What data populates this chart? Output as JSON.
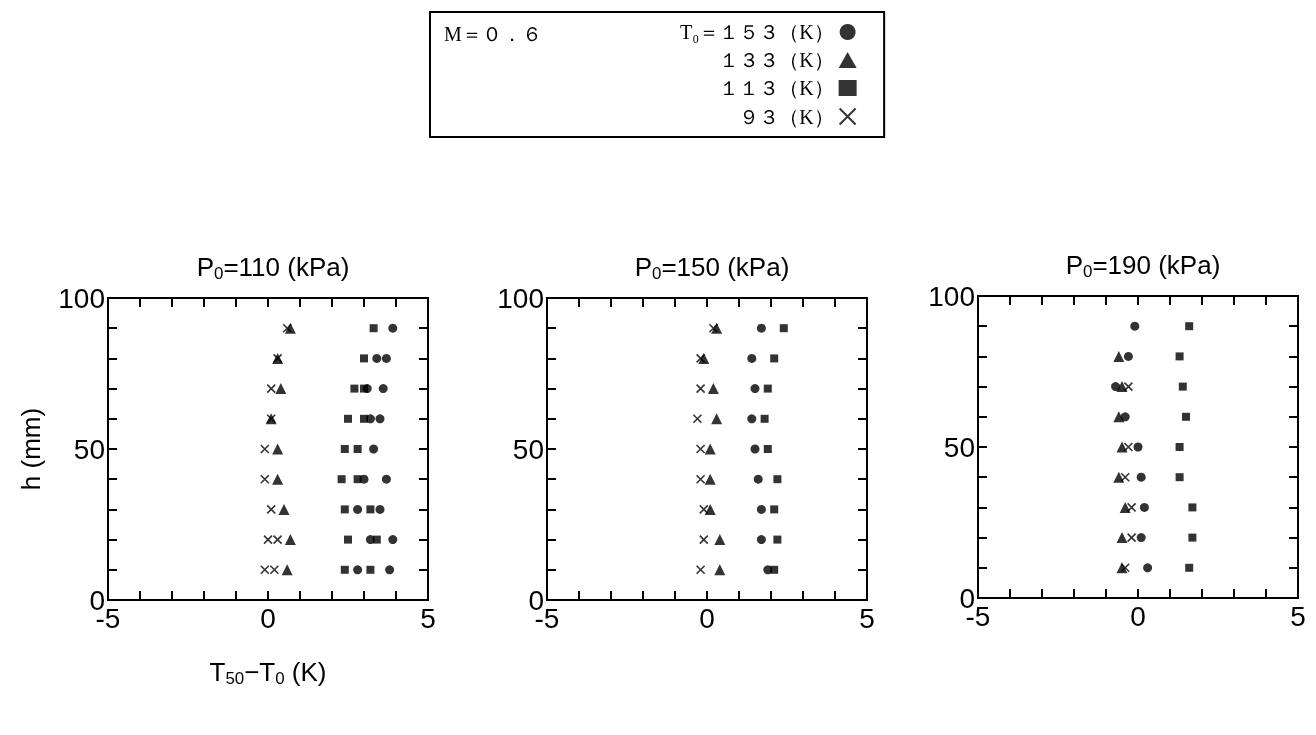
{
  "chart_data": [
    {
      "type": "scatter",
      "title": "P$_{0}$=110 (kPa)",
      "xlabel": "T$_{50}$−T$_{0}$ (K)",
      "ylabel": "h (mm)",
      "legend_title": "M＝０．６",
      "legend": "top",
      "xlim": [
        -5,
        5
      ],
      "xticks": [
        -5,
        {
          "value": -4,
          "label": null
        },
        {
          "value": -3,
          "label": null
        },
        {
          "value": -2,
          "label": null
        },
        {
          "value": -1,
          "label": null
        },
        0,
        {
          "value": 1,
          "label": null
        },
        {
          "value": 2,
          "label": null
        },
        {
          "value": 3,
          "label": null
        },
        {
          "value": 4,
          "label": null
        },
        5
      ],
      "ylim": [
        0,
        100
      ],
      "yticks": [
        0,
        {
          "value": 10,
          "label": null
        },
        {
          "value": 20,
          "label": null
        },
        {
          "value": 30,
          "label": null
        },
        {
          "value": 40,
          "label": null
        },
        50,
        {
          "value": 60,
          "label": null
        },
        {
          "value": 70,
          "label": null
        },
        {
          "value": 80,
          "label": null
        },
        {
          "value": 90,
          "label": null
        },
        100
      ],
      "series": [
        {
          "name": "T₀＝１５３（K）",
          "color": "#000000",
          "marker": "circle",
          "x": [
            3.9,
            3.4,
            3.7,
            3.1,
            3.6,
            3.2,
            3.5,
            3.3,
            3.0,
            3.7,
            2.8,
            3.5,
            3.2,
            3.9,
            2.8,
            3.8
          ],
          "values": [
            90,
            80,
            80,
            70,
            70,
            60,
            60,
            50,
            40,
            40,
            30,
            30,
            20,
            20,
            10,
            10
          ]
        },
        {
          "name": "１３３（K）",
          "color": "#000000",
          "marker": "triangle",
          "x": [
            0.7,
            0.3,
            0.4,
            0.1,
            0.3,
            0.3,
            0.5,
            0.7,
            0.6
          ],
          "values": [
            90,
            80,
            70,
            60,
            50,
            40,
            30,
            20,
            10
          ]
        },
        {
          "name": "１１３（K）",
          "color": "#000000",
          "marker": "square",
          "x": [
            3.3,
            3.0,
            2.7,
            3.0,
            2.5,
            3.0,
            2.4,
            2.8,
            2.3,
            2.8,
            2.4,
            3.2,
            2.5,
            3.4,
            2.4,
            3.2
          ],
          "values": [
            90,
            80,
            70,
            70,
            60,
            60,
            50,
            50,
            40,
            40,
            30,
            30,
            20,
            20,
            10,
            10
          ]
        },
        {
          "name": "９３（K）",
          "color": "#000000",
          "marker": "cross",
          "x": [
            0.6,
            0.3,
            0.1,
            0.1,
            -0.1,
            -0.1,
            0.1,
            0.0,
            0.3,
            -0.1,
            0.2
          ],
          "values": [
            90,
            80,
            70,
            60,
            50,
            40,
            30,
            20,
            20,
            10,
            10
          ]
        }
      ]
    },
    {
      "type": "scatter",
      "title": "P$_{0}$=150 (kPa)",
      "xlim": [
        -5,
        5
      ],
      "xticks": [
        -5,
        {
          "value": -4,
          "label": null
        },
        {
          "value": -3,
          "label": null
        },
        {
          "value": -2,
          "label": null
        },
        {
          "value": -1,
          "label": null
        },
        0,
        {
          "value": 1,
          "label": null
        },
        {
          "value": 2,
          "label": null
        },
        {
          "value": 3,
          "label": null
        },
        {
          "value": 4,
          "label": null
        },
        5
      ],
      "ylim": [
        0,
        100
      ],
      "yticks": [
        0,
        {
          "value": 10,
          "label": null
        },
        {
          "value": 20,
          "label": null
        },
        {
          "value": 30,
          "label": null
        },
        {
          "value": 40,
          "label": null
        },
        50,
        {
          "value": 60,
          "label": null
        },
        {
          "value": 70,
          "label": null
        },
        {
          "value": 80,
          "label": null
        },
        {
          "value": 90,
          "label": null
        },
        100
      ],
      "series": [
        {
          "color": "#000000",
          "marker": "circle",
          "x": [
            1.7,
            1.4,
            1.5,
            1.4,
            1.5,
            1.6,
            1.7,
            1.7,
            1.9
          ],
          "values": [
            90,
            80,
            70,
            60,
            50,
            40,
            30,
            20,
            10
          ]
        },
        {
          "color": "#000000",
          "marker": "triangle",
          "x": [
            0.3,
            -0.1,
            0.2,
            0.3,
            0.1,
            0.1,
            0.1,
            0.4,
            0.4
          ],
          "values": [
            90,
            80,
            70,
            60,
            50,
            40,
            30,
            20,
            10
          ]
        },
        {
          "color": "#000000",
          "marker": "square",
          "x": [
            2.4,
            2.1,
            1.9,
            1.8,
            1.9,
            2.2,
            2.1,
            2.2,
            2.1
          ],
          "values": [
            90,
            80,
            70,
            60,
            50,
            40,
            30,
            20,
            10
          ]
        },
        {
          "color": "#000000",
          "marker": "cross",
          "x": [
            0.2,
            -0.2,
            -0.2,
            -0.3,
            -0.2,
            -0.2,
            -0.1,
            -0.1,
            -0.2
          ],
          "values": [
            90,
            80,
            70,
            60,
            50,
            40,
            30,
            20,
            10
          ]
        }
      ]
    },
    {
      "type": "scatter",
      "title": "P$_{0}$=190 (kPa)",
      "xlim": [
        -5,
        5
      ],
      "xticks": [
        -5,
        {
          "value": -4,
          "label": null
        },
        {
          "value": -3,
          "label": null
        },
        {
          "value": -2,
          "label": null
        },
        {
          "value": -1,
          "label": null
        },
        0,
        {
          "value": 1,
          "label": null
        },
        {
          "value": 2,
          "label": null
        },
        {
          "value": 3,
          "label": null
        },
        {
          "value": 4,
          "label": null
        },
        5
      ],
      "ylim": [
        0,
        100
      ],
      "yticks": [
        0,
        {
          "value": 10,
          "label": null
        },
        {
          "value": 20,
          "label": null
        },
        {
          "value": 30,
          "label": null
        },
        {
          "value": 40,
          "label": null
        },
        50,
        {
          "value": 60,
          "label": null
        },
        {
          "value": 70,
          "label": null
        },
        {
          "value": 80,
          "label": null
        },
        {
          "value": 90,
          "label": null
        },
        100
      ],
      "series": [
        {
          "color": "#000000",
          "marker": "circle",
          "x": [
            -0.1,
            -0.3,
            -0.7,
            -0.4,
            0.0,
            0.1,
            0.2,
            0.1,
            0.3
          ],
          "values": [
            90,
            80,
            70,
            60,
            50,
            40,
            30,
            20,
            10
          ]
        },
        {
          "color": "#000000",
          "marker": "triangle",
          "x": [
            -0.6,
            -0.5,
            -0.6,
            -0.5,
            -0.6,
            -0.4,
            -0.5,
            -0.5
          ],
          "values": [
            80,
            70,
            60,
            50,
            40,
            30,
            20,
            10
          ]
        },
        {
          "color": "#000000",
          "marker": "square",
          "x": [
            1.6,
            1.3,
            1.4,
            1.5,
            1.3,
            1.3,
            1.7,
            1.7,
            1.6
          ],
          "values": [
            90,
            80,
            70,
            60,
            50,
            40,
            30,
            20,
            10
          ]
        },
        {
          "color": "#000000",
          "marker": "cross",
          "x": [
            -0.3,
            -0.3,
            -0.4,
            -0.2,
            -0.2,
            -0.4
          ],
          "values": [
            70,
            50,
            40,
            30,
            20,
            10
          ]
        }
      ]
    }
  ]
}
